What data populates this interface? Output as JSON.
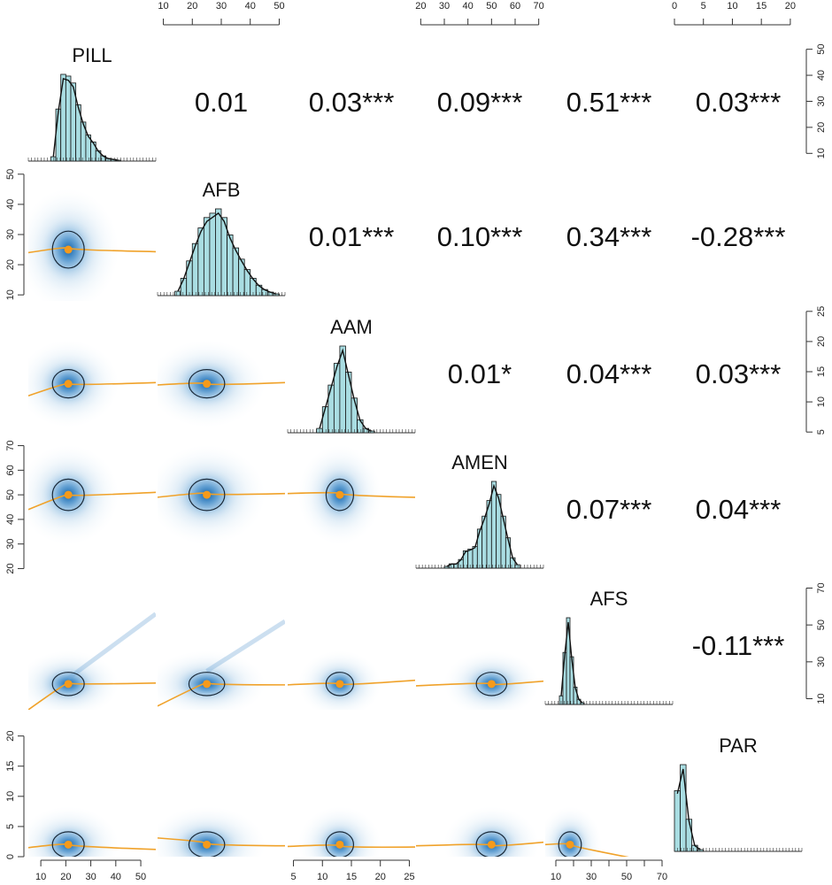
{
  "chart_data": {
    "type": "scatterplot-matrix",
    "title": "",
    "variables": [
      "PILL",
      "AFB",
      "AAM",
      "AMEN",
      "AFS",
      "PAR"
    ],
    "ranges": {
      "PILL": [
        5,
        56
      ],
      "AFB": [
        8,
        52
      ],
      "AAM": [
        4,
        26
      ],
      "AMEN": [
        18,
        72
      ],
      "AFS": [
        4,
        76
      ],
      "PAR": [
        0,
        22
      ]
    },
    "means": {
      "PILL": 21,
      "AFB": 25,
      "AAM": 13,
      "AMEN": 50,
      "AFS": 18,
      "PAR": 2
    },
    "sds": {
      "PILL": 4.5,
      "AFB": 4.5,
      "AAM": 1.6,
      "AMEN": 4.5,
      "AFS": 4,
      "PAR": 1.4
    },
    "axes": {
      "top": [
        {
          "var": "AFB",
          "ticks": [
            "10",
            "20",
            "30",
            "40",
            "50"
          ]
        },
        {
          "var": "AMEN",
          "ticks": [
            "20",
            "30",
            "40",
            "50",
            "60",
            "70"
          ]
        },
        {
          "var": "PAR",
          "ticks": [
            "0",
            "5",
            "10",
            "15",
            "20"
          ]
        }
      ],
      "bottom": [
        {
          "var": "PILL",
          "ticks": [
            "10",
            "20",
            "30",
            "40",
            "50"
          ],
          "labels": [
            "10",
            "20",
            "30",
            "40",
            "50"
          ]
        },
        {
          "var": "AAM",
          "ticks": [
            "5",
            "10",
            "15",
            "20",
            "25"
          ],
          "labels": [
            "5",
            "10",
            "15",
            "20",
            "25"
          ]
        },
        {
          "var": "AFS",
          "ticks": [
            "10",
            "20",
            "30",
            "40",
            "50",
            "60",
            "70"
          ],
          "labels": [
            "10",
            "30",
            "50",
            "70"
          ]
        }
      ],
      "left": [
        {
          "var": "AFB",
          "ticks": [
            "10",
            "20",
            "30",
            "40",
            "50"
          ]
        },
        {
          "var": "AMEN",
          "ticks": [
            "20",
            "30",
            "40",
            "50",
            "60",
            "70"
          ]
        },
        {
          "var": "PAR",
          "ticks": [
            "0",
            "5",
            "10",
            "15",
            "20"
          ]
        }
      ],
      "right": [
        {
          "var": "PILL",
          "ticks": [
            "10",
            "20",
            "30",
            "40",
            "50"
          ]
        },
        {
          "var": "AAM",
          "ticks": [
            "5",
            "10",
            "15",
            "20",
            "25"
          ]
        },
        {
          "var": "AFS",
          "ticks": [
            "10",
            "30",
            "50",
            "70"
          ]
        }
      ]
    },
    "correlations": [
      {
        "row": "PILL",
        "col": "AFB",
        "label": "0.01"
      },
      {
        "row": "PILL",
        "col": "AAM",
        "label": "0.03***"
      },
      {
        "row": "PILL",
        "col": "AMEN",
        "label": "0.09***"
      },
      {
        "row": "PILL",
        "col": "AFS",
        "label": "0.51***"
      },
      {
        "row": "PILL",
        "col": "PAR",
        "label": "0.03***"
      },
      {
        "row": "AFB",
        "col": "AAM",
        "label": "0.01***"
      },
      {
        "row": "AFB",
        "col": "AMEN",
        "label": "0.10***"
      },
      {
        "row": "AFB",
        "col": "AFS",
        "label": "0.34***"
      },
      {
        "row": "AFB",
        "col": "PAR",
        "label": "-0.28***"
      },
      {
        "row": "AAM",
        "col": "AMEN",
        "label": "0.01*"
      },
      {
        "row": "AAM",
        "col": "AFS",
        "label": "0.04***"
      },
      {
        "row": "AAM",
        "col": "PAR",
        "label": "0.03***"
      },
      {
        "row": "AMEN",
        "col": "AFS",
        "label": "0.07***"
      },
      {
        "row": "AMEN",
        "col": "PAR",
        "label": "0.04***"
      },
      {
        "row": "AFS",
        "col": "PAR",
        "label": "-0.11***"
      }
    ],
    "histograms": {
      "PILL": {
        "start": 14,
        "width": 2,
        "heights": [
          0.05,
          0.6,
          1.0,
          0.98,
          0.9,
          0.65,
          0.45,
          0.3,
          0.22,
          0.12,
          0.06,
          0.03,
          0.02,
          0.01
        ]
      },
      "AFB": {
        "start": 14,
        "width": 2,
        "heights": [
          0.05,
          0.2,
          0.4,
          0.6,
          0.78,
          0.9,
          0.95,
          1.0,
          0.9,
          0.7,
          0.55,
          0.42,
          0.3,
          0.2,
          0.12,
          0.07,
          0.04,
          0.02
        ]
      },
      "AAM": {
        "start": 9,
        "width": 1,
        "heights": [
          0.05,
          0.3,
          0.55,
          0.8,
          1.0,
          0.7,
          0.4,
          0.15,
          0.05,
          0.02
        ]
      },
      "AMEN": {
        "start": 30,
        "width": 2,
        "heights": [
          0.02,
          0.05,
          0.05,
          0.1,
          0.2,
          0.22,
          0.25,
          0.45,
          0.6,
          0.78,
          1.0,
          0.85,
          0.6,
          0.35,
          0.12,
          0.04
        ]
      },
      "AFS": {
        "start": 12,
        "width": 2,
        "heights": [
          0.1,
          0.6,
          1.0,
          0.55,
          0.2,
          0.06,
          0.02
        ]
      },
      "PAR": {
        "start": 0,
        "width": 1,
        "heights": [
          0.7,
          1.0,
          0.37,
          0.07,
          0.02
        ]
      }
    },
    "loess": [
      {
        "y": "AFB",
        "x": "PILL",
        "values": [
          24,
          25.5,
          24.3
        ]
      },
      {
        "y": "AAM",
        "x": "PILL",
        "values": [
          11,
          13,
          13.2
        ]
      },
      {
        "y": "AAM",
        "x": "AFB",
        "values": [
          12.8,
          13,
          13.2
        ]
      },
      {
        "y": "AMEN",
        "x": "PILL",
        "values": [
          44,
          50,
          51
        ]
      },
      {
        "y": "AMEN",
        "x": "AFB",
        "values": [
          49,
          50.5,
          50.5
        ]
      },
      {
        "y": "AMEN",
        "x": "AAM",
        "values": [
          50.5,
          50.5,
          49
        ]
      },
      {
        "y": "AFS",
        "x": "PILL",
        "values": [
          4,
          18.5,
          18.5
        ]
      },
      {
        "y": "AFS",
        "x": "AFB",
        "values": [
          6,
          18.5,
          17.5
        ]
      },
      {
        "y": "AFS",
        "x": "AAM",
        "values": [
          17.5,
          18,
          20
        ]
      },
      {
        "y": "AFS",
        "x": "AMEN",
        "values": [
          17,
          18,
          19.5
        ]
      },
      {
        "y": "PAR",
        "x": "PILL",
        "values": [
          1.5,
          2,
          1.2
        ]
      },
      {
        "y": "PAR",
        "x": "AFB",
        "values": [
          3.1,
          2.2,
          1.8
        ]
      },
      {
        "y": "PAR",
        "x": "AAM",
        "values": [
          1.7,
          1.8,
          1.6
        ]
      },
      {
        "y": "PAR",
        "x": "AMEN",
        "values": [
          1.8,
          1.9,
          2.4
        ]
      },
      {
        "y": "PAR",
        "x": "AFS",
        "values": [
          2,
          2,
          -1.5
        ]
      }
    ],
    "ridges": [
      {
        "y": "AFS",
        "x": "PILL"
      },
      {
        "y": "AFS",
        "x": "AFB"
      }
    ],
    "colors": {
      "density": "#1f6fb4",
      "histogram_fill": "#a9dde2",
      "loess": "#f0a22a",
      "mean_point": "#f59a1b",
      "ellipse": "#1a2a3a"
    }
  }
}
